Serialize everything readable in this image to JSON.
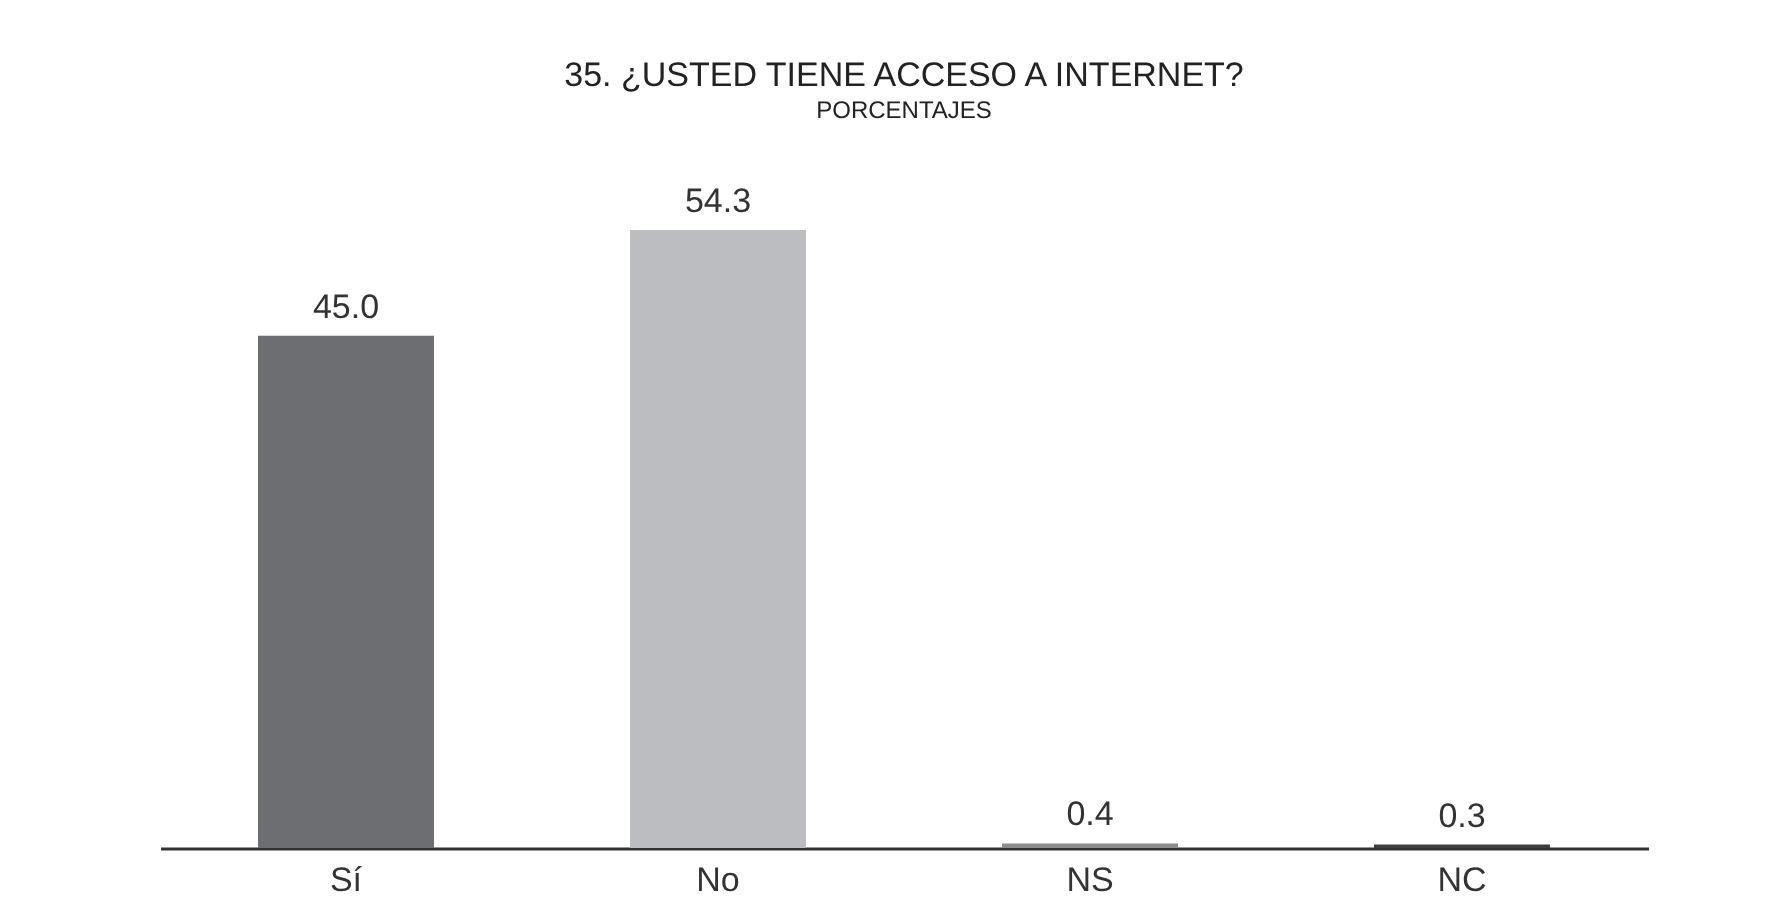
{
  "chart_data": {
    "type": "bar",
    "title": "35. ¿USTED TIENE ACCESO A INTERNET?",
    "subtitle": "PORCENTAJES",
    "categories": [
      "Sí",
      "No",
      "NS",
      "NC"
    ],
    "values": [
      45.0,
      54.3,
      0.4,
      0.3
    ],
    "value_labels": [
      "45.0",
      "54.3",
      "0.4",
      "0.3"
    ],
    "colors": [
      "#6d6e72",
      "#bcbdc1",
      "#8c8c8c",
      "#3f3f42"
    ]
  }
}
